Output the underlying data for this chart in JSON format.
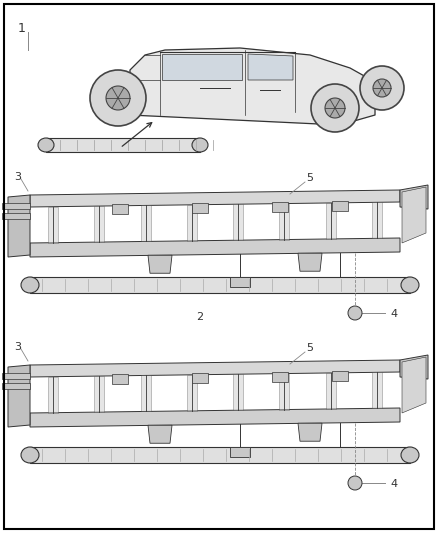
{
  "bg_color": "#ffffff",
  "border_color": "#000000",
  "border_lw": 1.5,
  "fig_width": 4.38,
  "fig_height": 5.33,
  "dpi": 100,
  "line_color": "#333333",
  "annotation_line_color": "#888888",
  "dark_line": "#222222",
  "fill_light": "#e0e0e0",
  "fill_mid": "#c8c8c8",
  "fill_dark": "#aaaaaa"
}
